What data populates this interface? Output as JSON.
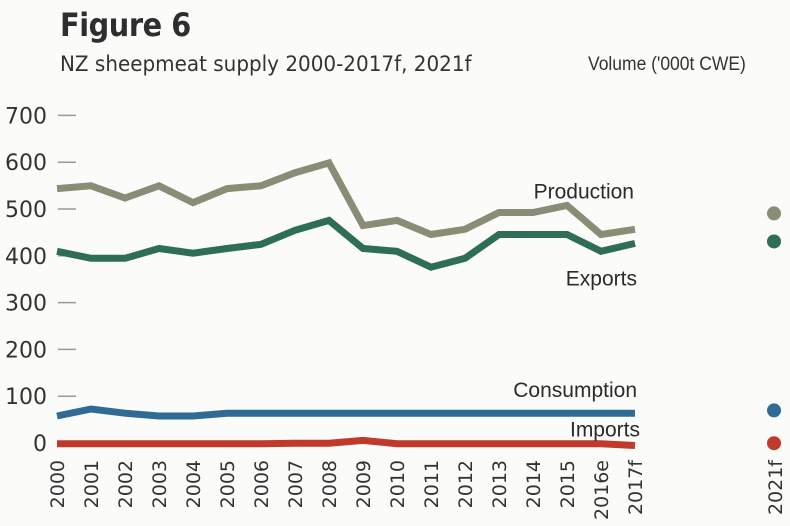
{
  "header": {
    "figure_label": "Figure 6",
    "subtitle": "NZ sheepmeat supply 2000-2017f, 2021f",
    "unit_label": "Volume ('000t CWE)"
  },
  "chart_data": {
    "type": "line",
    "title": "Figure 6",
    "subtitle": "NZ sheepmeat supply 2000-2017f, 2021f",
    "xlabel": "",
    "ylabel": "Volume ('000t CWE)",
    "ylim": [
      0,
      700
    ],
    "yticks": [
      0,
      100,
      200,
      300,
      400,
      500,
      600,
      700
    ],
    "grid": false,
    "legend": "inline labels at right end of lines",
    "x": [
      "2000",
      "2001",
      "2002",
      "2003",
      "2004",
      "2005",
      "2006",
      "2007",
      "2008",
      "2009",
      "2010",
      "2011",
      "2012",
      "2013",
      "2014",
      "2015",
      "2016e",
      "2017f"
    ],
    "x_numeric": [
      2000,
      2001,
      2002,
      2003,
      2004,
      2005,
      2006,
      2007,
      2008,
      2009,
      2010,
      2011,
      2012,
      2013,
      2014,
      2015,
      2016,
      2017
    ],
    "series": [
      {
        "name": "Production",
        "color": "#8a8c76",
        "values": [
          550,
          556,
          530,
          556,
          520,
          550,
          556,
          584,
          605,
          471,
          482,
          452,
          463,
          499,
          499,
          514,
          452,
          463
        ]
      },
      {
        "name": "Exports",
        "color": "#2e6e57",
        "values": [
          416,
          401,
          401,
          422,
          412,
          422,
          431,
          461,
          482,
          422,
          416,
          382,
          401,
          452,
          452,
          452,
          416,
          433
        ]
      },
      {
        "name": "Consumption",
        "color": "#2f6b94",
        "values": [
          64,
          79,
          70,
          64,
          64,
          70,
          70,
          70,
          70,
          70,
          70,
          70,
          70,
          70,
          70,
          70,
          70,
          70
        ]
      },
      {
        "name": "Imports",
        "color": "#c0392b",
        "values": [
          5,
          5,
          5,
          5,
          5,
          5,
          5,
          6,
          6,
          12,
          5,
          5,
          5,
          5,
          5,
          5,
          5,
          1
        ]
      }
    ],
    "forecast_2021f": {
      "label": "2021f",
      "points": [
        {
          "series": "Production",
          "value": 497
        },
        {
          "series": "Exports",
          "value": 437
        },
        {
          "series": "Consumption",
          "value": 76
        },
        {
          "series": "Imports",
          "value": 6
        }
      ]
    }
  }
}
